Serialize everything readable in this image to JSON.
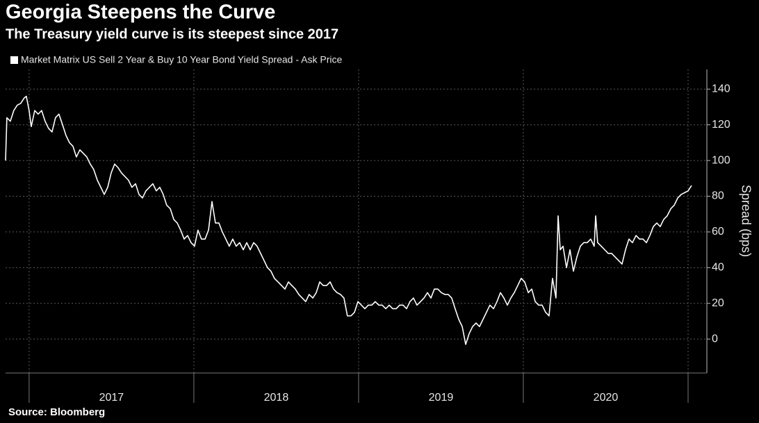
{
  "chart_data": {
    "type": "line",
    "title": "Georgia Steepens the Curve",
    "subtitle": "The Treasury yield curve is its steepest since 2017",
    "ylabel": "Spread (bps)",
    "source": "Source: Bloomberg",
    "legend": "top-left",
    "grid": true,
    "xlim": [
      2016.857,
      2021.114
    ],
    "ylim": [
      -19,
      151
    ],
    "yticks": [
      0,
      20,
      40,
      60,
      80,
      100,
      120,
      140
    ],
    "xticks": [
      2017,
      2018,
      2019,
      2020,
      2021
    ],
    "xtick_labels": [
      {
        "value": 2017.5,
        "label": "2017"
      },
      {
        "value": 2018.5,
        "label": "2018"
      },
      {
        "value": 2019.5,
        "label": "2019"
      },
      {
        "value": 2020.5,
        "label": "2020"
      }
    ],
    "x": [
      2016.857,
      2016.865,
      2016.886,
      2016.907,
      2016.928,
      2016.949,
      2016.97,
      2016.983,
      2017.0,
      2017.013,
      2017.034,
      2017.055,
      2017.076,
      2017.097,
      2017.118,
      2017.139,
      2017.16,
      2017.181,
      2017.203,
      2017.224,
      2017.245,
      2017.266,
      2017.287,
      2017.308,
      2017.329,
      2017.35,
      2017.371,
      2017.392,
      2017.414,
      2017.435,
      2017.456,
      2017.477,
      2017.498,
      2017.519,
      2017.54,
      2017.561,
      2017.582,
      2017.603,
      2017.624,
      2017.646,
      2017.667,
      2017.688,
      2017.709,
      2017.73,
      2017.751,
      2017.772,
      2017.793,
      2017.814,
      2017.835,
      2017.857,
      2017.878,
      2017.899,
      2017.92,
      2017.941,
      2017.962,
      2017.983,
      2018.004,
      2018.025,
      2018.046,
      2018.068,
      2018.089,
      2018.11,
      2018.131,
      2018.152,
      2018.173,
      2018.194,
      2018.215,
      2018.236,
      2018.257,
      2018.278,
      2018.3,
      2018.321,
      2018.342,
      2018.363,
      2018.384,
      2018.405,
      2018.426,
      2018.447,
      2018.468,
      2018.489,
      2018.511,
      2018.532,
      2018.553,
      2018.574,
      2018.595,
      2018.616,
      2018.637,
      2018.658,
      2018.679,
      2018.7,
      2018.722,
      2018.743,
      2018.764,
      2018.785,
      2018.806,
      2018.827,
      2018.848,
      2018.869,
      2018.89,
      2018.911,
      2018.932,
      2018.954,
      2018.975,
      2018.996,
      2019.017,
      2019.038,
      2019.059,
      2019.08,
      2019.101,
      2019.122,
      2019.143,
      2019.165,
      2019.186,
      2019.207,
      2019.228,
      2019.249,
      2019.27,
      2019.291,
      2019.312,
      2019.333,
      2019.354,
      2019.376,
      2019.397,
      2019.418,
      2019.439,
      2019.46,
      2019.481,
      2019.502,
      2019.523,
      2019.544,
      2019.565,
      2019.586,
      2019.608,
      2019.629,
      2019.65,
      2019.671,
      2019.692,
      2019.713,
      2019.734,
      2019.755,
      2019.776,
      2019.797,
      2019.819,
      2019.84,
      2019.861,
      2019.882,
      2019.903,
      2019.924,
      2019.945,
      2019.966,
      2019.987,
      2020.008,
      2020.03,
      2020.051,
      2020.072,
      2020.093,
      2020.114,
      2020.135,
      2020.156,
      2020.177,
      2020.198,
      2020.211,
      2020.224,
      2020.241,
      2020.262,
      2020.283,
      2020.304,
      2020.325,
      2020.346,
      2020.367,
      2020.388,
      2020.409,
      2020.43,
      2020.439,
      2020.451,
      2020.473,
      2020.494,
      2020.515,
      2020.536,
      2020.557,
      2020.578,
      2020.599,
      2020.62,
      2020.641,
      2020.662,
      2020.684,
      2020.705,
      2020.726,
      2020.747,
      2020.768,
      2020.789,
      2020.81,
      2020.831,
      2020.852,
      2020.873,
      2020.895,
      2020.916,
      2020.937,
      2020.958,
      2020.979,
      2021.0,
      2021.021
    ],
    "series": [
      {
        "name": "Market Matrix US Sell 2 Year & Buy 10 Year Bond Yield Spread - Ask Price",
        "color": "#ffffff",
        "values": [
          100,
          124,
          122,
          128,
          131,
          132,
          135,
          136,
          128,
          119,
          128,
          126,
          128,
          122,
          118,
          116,
          124,
          126,
          120,
          114,
          110,
          108,
          102,
          106,
          104,
          102,
          98,
          95,
          89,
          85,
          81,
          85,
          93,
          98,
          96,
          93,
          91,
          89,
          85,
          87,
          81,
          79,
          83,
          85,
          87,
          83,
          85,
          81,
          75,
          73,
          67,
          65,
          61,
          56,
          58,
          54,
          52,
          61,
          56,
          56,
          61,
          77,
          65,
          65,
          60,
          56,
          52,
          56,
          52,
          54,
          50,
          54,
          50,
          54,
          52,
          48,
          44,
          40,
          38,
          34,
          32,
          30,
          28,
          32,
          30,
          28,
          25,
          23,
          21,
          25,
          23,
          26,
          32,
          30,
          30,
          32,
          28,
          26,
          25,
          23,
          13,
          13,
          15,
          21,
          19,
          17,
          19,
          19,
          21,
          19,
          19,
          17,
          19,
          17,
          17,
          19,
          19,
          17,
          21,
          23,
          19,
          21,
          23,
          26,
          23,
          28,
          28,
          26,
          25,
          25,
          23,
          17,
          11,
          7,
          -3,
          3,
          7,
          9,
          7,
          11,
          15,
          19,
          17,
          21,
          26,
          23,
          19,
          23,
          26,
          30,
          34,
          32,
          26,
          28,
          21,
          19,
          19,
          15,
          13,
          34,
          23,
          69,
          50,
          52,
          40,
          50,
          38,
          46,
          52,
          54,
          54,
          56,
          52,
          69,
          54,
          52,
          50,
          48,
          48,
          46,
          44,
          42,
          50,
          56,
          54,
          58,
          56,
          56,
          54,
          58,
          63,
          65,
          63,
          67,
          69,
          73,
          75,
          79,
          81,
          82,
          83,
          86
        ]
      }
    ]
  }
}
